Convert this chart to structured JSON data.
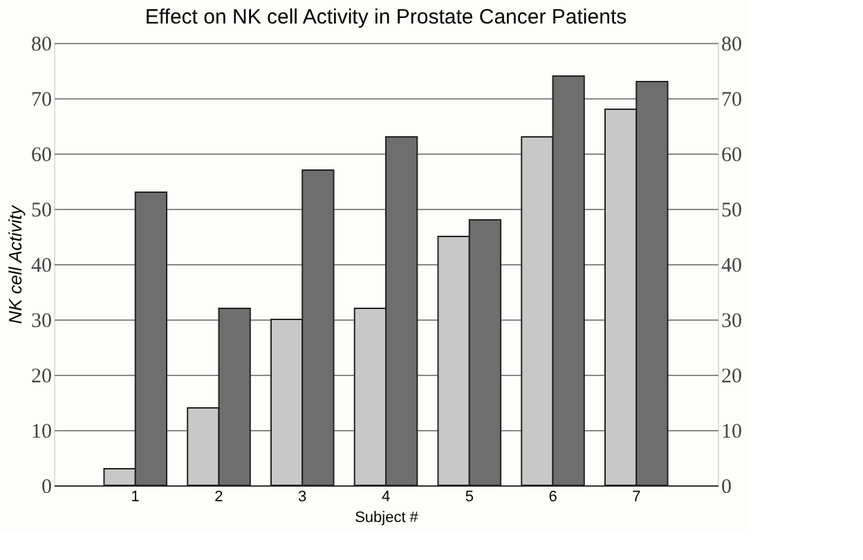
{
  "chart_data": {
    "type": "bar",
    "title": "Effect on NK cell Activity in Prostate Cancer Patients",
    "xlabel": "Subject #",
    "ylabel": "NK cell  Activity",
    "categories": [
      "1",
      "2",
      "3",
      "4",
      "5",
      "6",
      "7"
    ],
    "series": [
      {
        "color": "#c8c8c8",
        "values": [
          3,
          14,
          30,
          32,
          45,
          63,
          68
        ]
      },
      {
        "color": "#6e6e6e",
        "values": [
          53,
          32,
          57,
          63,
          48,
          74,
          73
        ]
      }
    ],
    "ylim": [
      0,
      80
    ],
    "yticks": [
      0,
      10,
      20,
      30,
      40,
      50,
      60,
      70,
      80
    ],
    "y2lim": [
      0,
      80
    ],
    "y2ticks": [
      0,
      10,
      20,
      30,
      40,
      50,
      60,
      70,
      80
    ],
    "grid": "y",
    "legend": false
  }
}
